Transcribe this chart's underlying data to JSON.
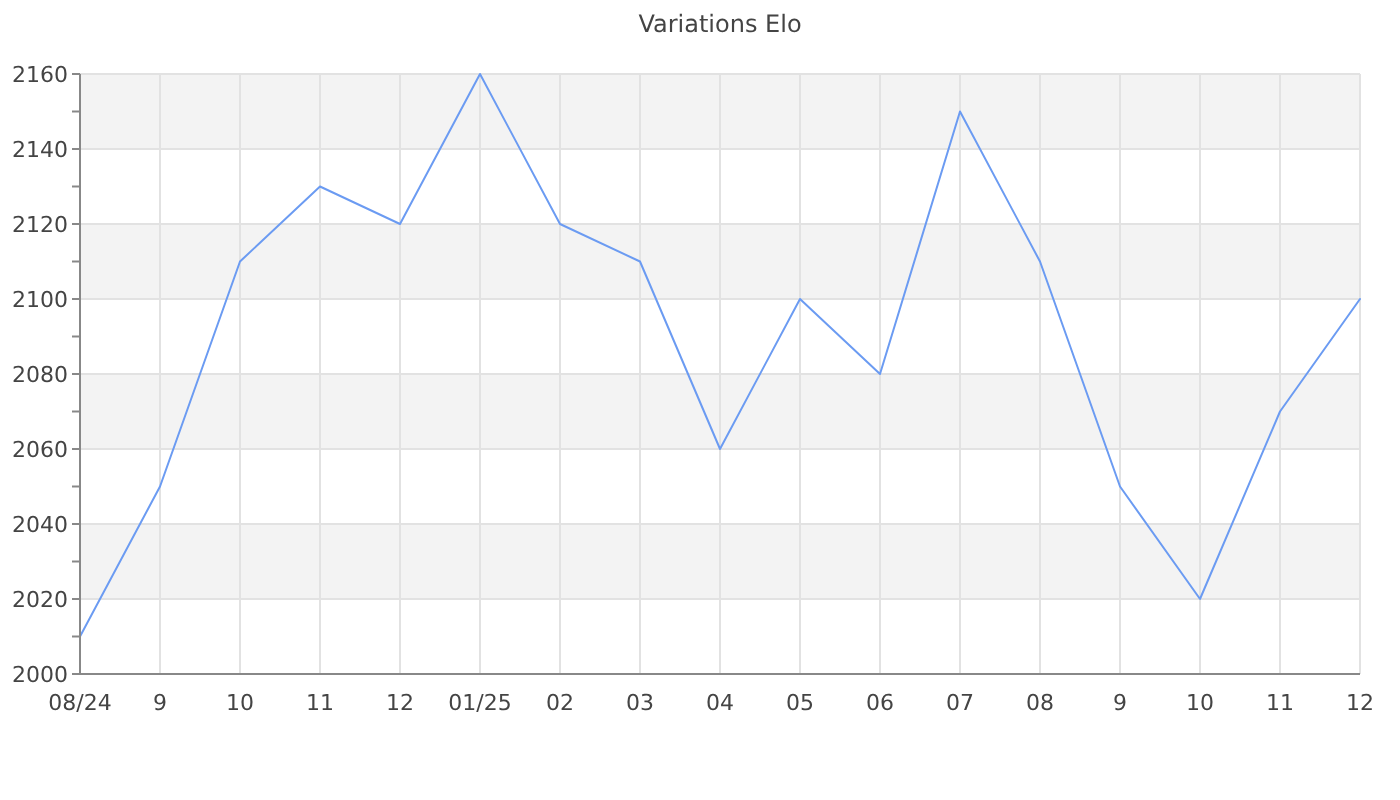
{
  "chart_data": {
    "type": "line",
    "title": "Variations Elo",
    "categories": [
      "08/24",
      "9",
      "10",
      "11",
      "12",
      "01/25",
      "02",
      "03",
      "04",
      "05",
      "06",
      "07",
      "08",
      "9",
      "10",
      "11",
      "12"
    ],
    "series": [
      {
        "color": "#6b9bf2",
        "values": [
          2010,
          2050,
          2110,
          2130,
          2120,
          2160,
          2120,
          2110,
          2060,
          2100,
          2080,
          2150,
          2110,
          2050,
          2020,
          2070,
          2100
        ]
      }
    ],
    "ylim": [
      2000,
      2160
    ],
    "yticks": [
      2000,
      {
        "value": 2010,
        "label": null
      },
      2020,
      {
        "value": 2030,
        "label": null
      },
      2040,
      {
        "value": 2050,
        "label": null
      },
      2060,
      {
        "value": 2070,
        "label": null
      },
      2080,
      {
        "value": 2090,
        "label": null
      },
      2100,
      {
        "value": 2110,
        "label": null
      },
      2120,
      {
        "value": 2130,
        "label": null
      },
      2140,
      {
        "value": 2150,
        "label": null
      },
      2160
    ],
    "grid": true,
    "marker": "none",
    "line_style": "solid"
  }
}
